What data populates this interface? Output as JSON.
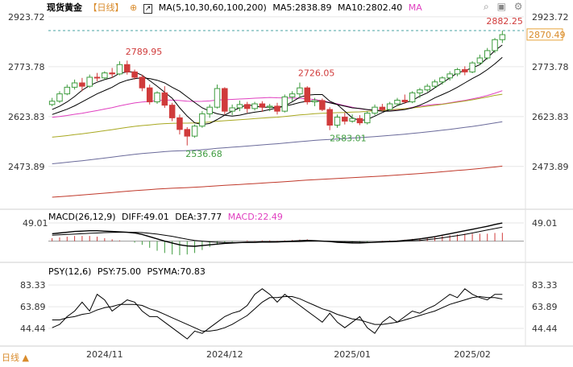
{
  "header": {
    "symbol": "现货黄金",
    "period": "【日线】",
    "period_icon": "target-icon",
    "ma_icon": "ma-icon",
    "ma_label": "MA(5,10,30,60,100,200)",
    "ma5": "MA5:2838.89",
    "ma10": "MA10:2802.40",
    "ma_extra": "MA"
  },
  "toolbar_icons": [
    "search-icon",
    "camera-icon",
    "settings-icon"
  ],
  "macd_header": {
    "label": "MACD(26,12,9)",
    "diff": "DIFF:49.01",
    "dea": "DEA:37.77",
    "macd": "MACD:22.49"
  },
  "psy_header": {
    "label": "PSY(12,6)",
    "psy": "PSY:75.00",
    "psyma": "PSYMA:70.83"
  },
  "footer": {
    "label": "日线 ▲"
  },
  "colors": {
    "up": "#3f9c3f",
    "down": "#d03b3b",
    "ma5": "#000000",
    "ma10": "#000000",
    "ma30": "#e040c0",
    "ma60": "#a8a820",
    "ma100": "#6a6a9a",
    "ma200": "#c0392b",
    "psyma": "#000000",
    "grid": "#e6e6e6",
    "price_box": "#e8a33c"
  },
  "chart_data": [
    {
      "type": "candlestick",
      "title": "现货黄金",
      "y_ticks": [
        "2923.72",
        "2773.78",
        "2623.83",
        "2473.89"
      ],
      "ylim": [
        2350,
        2950
      ],
      "x_ticks": [
        "2024/11",
        "2024/12",
        "2025/01",
        "2025/02"
      ],
      "last_price": "2870.49",
      "annotations": [
        "2882.25",
        "2789.95",
        "2726.05",
        "2536.68",
        "2583.01"
      ],
      "candles": [
        [
          2660,
          2680,
          2655,
          2670
        ],
        [
          2670,
          2700,
          2665,
          2692
        ],
        [
          2692,
          2720,
          2688,
          2712
        ],
        [
          2712,
          2735,
          2705,
          2725
        ],
        [
          2725,
          2740,
          2700,
          2715
        ],
        [
          2715,
          2750,
          2710,
          2742
        ],
        [
          2742,
          2755,
          2730,
          2740
        ],
        [
          2740,
          2760,
          2735,
          2755
        ],
        [
          2755,
          2770,
          2740,
          2752
        ],
        [
          2752,
          2790,
          2748,
          2780
        ],
        [
          2780,
          2792,
          2750,
          2758
        ],
        [
          2758,
          2765,
          2735,
          2742
        ],
        [
          2742,
          2750,
          2700,
          2710
        ],
        [
          2710,
          2720,
          2660,
          2668
        ],
        [
          2668,
          2700,
          2662,
          2695
        ],
        [
          2695,
          2715,
          2650,
          2658
        ],
        [
          2658,
          2665,
          2610,
          2620
        ],
        [
          2620,
          2630,
          2570,
          2585
        ],
        [
          2585,
          2592,
          2537,
          2565
        ],
        [
          2565,
          2600,
          2560,
          2595
        ],
        [
          2595,
          2640,
          2590,
          2632
        ],
        [
          2632,
          2660,
          2620,
          2652
        ],
        [
          2652,
          2720,
          2648,
          2708
        ],
        [
          2708,
          2712,
          2630,
          2640
        ],
        [
          2640,
          2660,
          2628,
          2650
        ],
        [
          2650,
          2672,
          2640,
          2660
        ],
        [
          2660,
          2668,
          2635,
          2648
        ],
        [
          2648,
          2668,
          2642,
          2662
        ],
        [
          2662,
          2670,
          2638,
          2652
        ],
        [
          2652,
          2662,
          2640,
          2655
        ],
        [
          2655,
          2665,
          2630,
          2640
        ],
        [
          2640,
          2690,
          2636,
          2683
        ],
        [
          2683,
          2700,
          2670,
          2692
        ],
        [
          2692,
          2726,
          2680,
          2710
        ],
        [
          2710,
          2715,
          2660,
          2668
        ],
        [
          2668,
          2680,
          2655,
          2672
        ],
        [
          2672,
          2678,
          2640,
          2645
        ],
        [
          2645,
          2652,
          2583,
          2598
        ],
        [
          2598,
          2630,
          2590,
          2622
        ],
        [
          2622,
          2635,
          2600,
          2610
        ],
        [
          2610,
          2630,
          2605,
          2618
        ],
        [
          2618,
          2628,
          2598,
          2605
        ],
        [
          2605,
          2640,
          2600,
          2634
        ],
        [
          2634,
          2660,
          2628,
          2652
        ],
        [
          2652,
          2662,
          2640,
          2645
        ],
        [
          2645,
          2668,
          2640,
          2662
        ],
        [
          2662,
          2680,
          2655,
          2673
        ],
        [
          2673,
          2690,
          2662,
          2668
        ],
        [
          2668,
          2700,
          2664,
          2695
        ],
        [
          2695,
          2710,
          2680,
          2704
        ],
        [
          2704,
          2722,
          2698,
          2715
        ],
        [
          2715,
          2735,
          2708,
          2728
        ],
        [
          2728,
          2745,
          2720,
          2740
        ],
        [
          2740,
          2760,
          2732,
          2752
        ],
        [
          2752,
          2770,
          2745,
          2765
        ],
        [
          2765,
          2775,
          2748,
          2758
        ],
        [
          2758,
          2790,
          2754,
          2785
        ],
        [
          2785,
          2810,
          2778,
          2800
        ],
        [
          2800,
          2830,
          2795,
          2822
        ],
        [
          2822,
          2860,
          2815,
          2855
        ],
        [
          2855,
          2882,
          2845,
          2870
        ]
      ],
      "ma5": [
        2645,
        2655,
        2668,
        2684,
        2703,
        2717,
        2727,
        2735,
        2741,
        2754,
        2758,
        2758,
        2748,
        2732,
        2715,
        2697,
        2679,
        2650,
        2625,
        2605,
        2600,
        2603,
        2615,
        2628,
        2640,
        2650,
        2660,
        2655,
        2652,
        2652,
        2651,
        2656,
        2668,
        2682,
        2688,
        2690,
        2690,
        2670,
        2660,
        2640,
        2620,
        2612,
        2615,
        2625,
        2636,
        2645,
        2657,
        2665,
        2672,
        2685,
        2695,
        2710,
        2725,
        2740,
        2755,
        2762,
        2770,
        2780,
        2800,
        2822,
        2839
      ],
      "ma10": [
        2630,
        2638,
        2646,
        2656,
        2668,
        2680,
        2692,
        2702,
        2712,
        2725,
        2733,
        2738,
        2740,
        2738,
        2733,
        2725,
        2712,
        2700,
        2683,
        2666,
        2650,
        2640,
        2632,
        2628,
        2625,
        2628,
        2633,
        2637,
        2640,
        2645,
        2650,
        2655,
        2660,
        2666,
        2670,
        2670,
        2670,
        2665,
        2660,
        2655,
        2650,
        2648,
        2645,
        2642,
        2640,
        2640,
        2642,
        2645,
        2650,
        2658,
        2668,
        2680,
        2690,
        2700,
        2712,
        2725,
        2738,
        2750,
        2765,
        2782,
        2802
      ]
    },
    {
      "type": "macd",
      "title": "MACD(26,12,9)",
      "y_ticks": [
        "49.01"
      ],
      "ylim": [
        -40,
        60
      ],
      "diff": [
        20,
        22,
        24,
        26,
        27,
        28,
        28,
        27,
        26,
        25,
        24,
        22,
        18,
        12,
        6,
        0,
        -5,
        -10,
        -13,
        -14,
        -12,
        -10,
        -8,
        -6,
        -5,
        -4,
        -3,
        -3,
        -2,
        -2,
        -2,
        -1,
        0,
        1,
        2,
        1,
        0,
        -1,
        -3,
        -4,
        -5,
        -5,
        -4,
        -3,
        -2,
        -1,
        0,
        2,
        4,
        6,
        9,
        12,
        16,
        20,
        24,
        28,
        32,
        36,
        40,
        45,
        49
      ],
      "dea": [
        16,
        17,
        18,
        19,
        20,
        21,
        22,
        23,
        23.5,
        24,
        24,
        24,
        23,
        21,
        19,
        16,
        13,
        9,
        5,
        2,
        0,
        -2,
        -3,
        -4,
        -4,
        -4,
        -4,
        -3.5,
        -3,
        -3,
        -2.5,
        -2,
        -1.5,
        -1,
        -0.5,
        0,
        0,
        -0.5,
        -1,
        -1.5,
        -2,
        -2.5,
        -3,
        -3,
        -2.5,
        -2,
        -1,
        0,
        1,
        2,
        4,
        6,
        9,
        12,
        15,
        18,
        22,
        26,
        30,
        34,
        37.77
      ],
      "macd": [
        8,
        10,
        12,
        14,
        14,
        14,
        12,
        8,
        5,
        2,
        0,
        -4,
        -10,
        -18,
        -26,
        -32,
        -36,
        -38,
        -36,
        -32,
        -24,
        -16,
        -10,
        -4,
        -2,
        0,
        2,
        1,
        2,
        2,
        1,
        2,
        3,
        4,
        5,
        2,
        0,
        -1,
        -4,
        -5,
        -6,
        -5,
        -2,
        0,
        1,
        2,
        2,
        4,
        6,
        8,
        10,
        12,
        14,
        16,
        18,
        20,
        20,
        20,
        20,
        22,
        22.49
      ]
    },
    {
      "type": "line",
      "title": "PSY(12,6)",
      "y_ticks": [
        "83.33",
        "63.89",
        "44.44"
      ],
      "ylim": [
        30,
        95
      ],
      "psy": [
        45,
        48,
        55,
        60,
        68,
        60,
        75,
        70,
        60,
        65,
        70,
        68,
        60,
        55,
        55,
        50,
        45,
        40,
        35,
        42,
        40,
        45,
        50,
        55,
        58,
        60,
        65,
        75,
        80,
        75,
        68,
        75,
        70,
        65,
        60,
        55,
        50,
        58,
        50,
        45,
        50,
        55,
        45,
        40,
        50,
        55,
        50,
        55,
        60,
        58,
        62,
        65,
        70,
        75,
        72,
        80,
        75,
        72,
        70,
        75,
        75
      ],
      "psyma": [
        52,
        52,
        54,
        55,
        57,
        58,
        61,
        63,
        64,
        66,
        66,
        66,
        65,
        62,
        60,
        57,
        54,
        51,
        48,
        45,
        42,
        42,
        43,
        45,
        48,
        52,
        56,
        62,
        68,
        72,
        72,
        73,
        73,
        71,
        68,
        65,
        62,
        60,
        57,
        55,
        53,
        52,
        50,
        48,
        48,
        49,
        50,
        52,
        54,
        56,
        58,
        60,
        63,
        66,
        68,
        70,
        72,
        73,
        72,
        72,
        70.83
      ]
    }
  ]
}
